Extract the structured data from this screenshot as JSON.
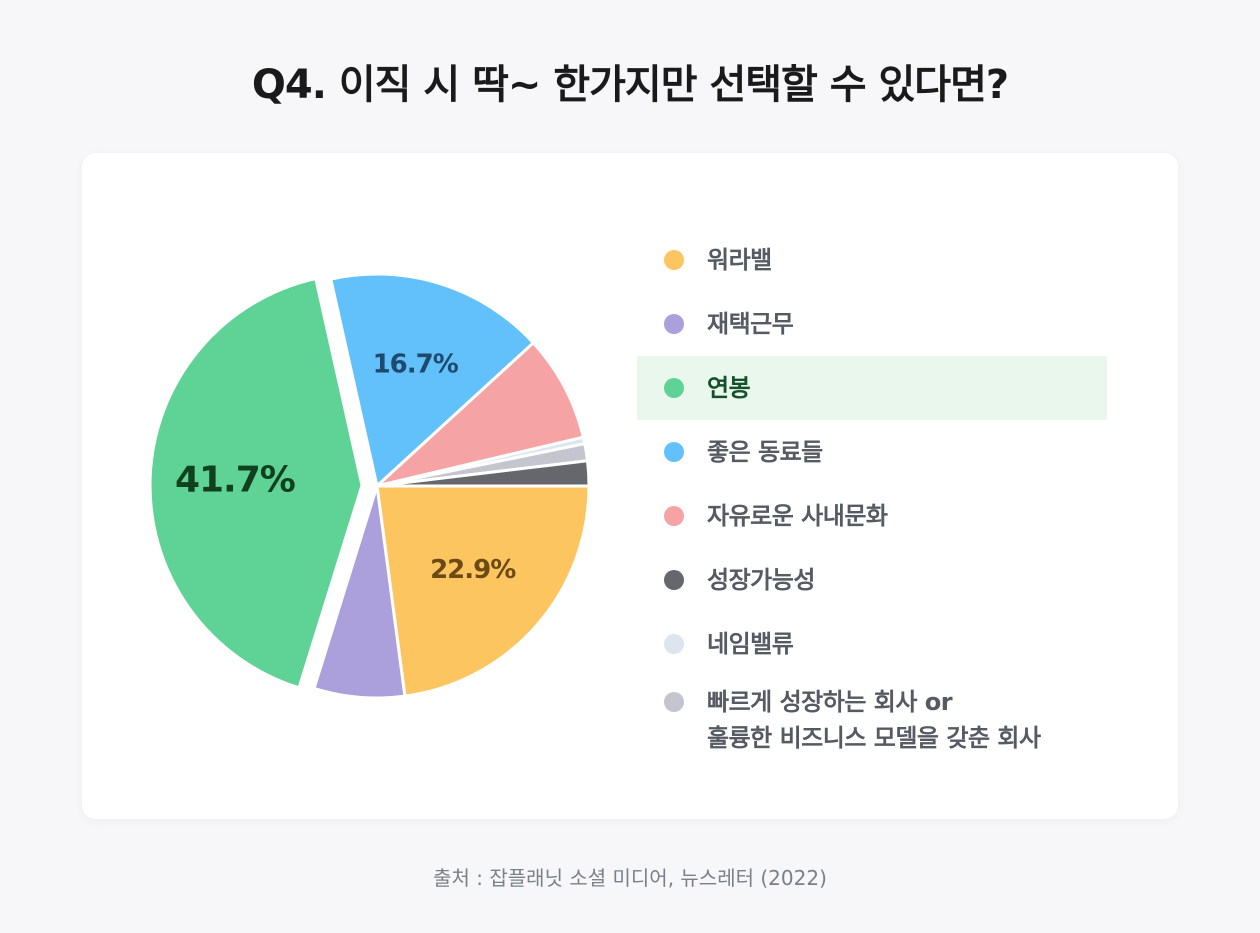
{
  "title": "Q4. 이직 시 딱~ 한가지만 선택할 수 있다면?",
  "source": "출처 : 잡플래닛 소셜 미디어, 뉴스레터 (2022)",
  "chart_data": {
    "type": "pie",
    "title": "Q4. 이직 시 딱~ 한가지만 선택할 수 있다면?",
    "highlighted": "연봉",
    "slices": [
      {
        "label": "워라밸",
        "value": 22.9,
        "color": "#fdc560",
        "label_color": "#6b4a16",
        "data_label": "22.9%"
      },
      {
        "label": "재택근무",
        "value": 6.9,
        "color": "#ab9fdc",
        "label_color": "#ffffff",
        "data_label": ""
      },
      {
        "label": "연봉",
        "value": 41.7,
        "color": "#5fd396",
        "label_color": "#11401f",
        "data_label": "41.7%",
        "exploded": true
      },
      {
        "label": "좋은 동료들",
        "value": 16.7,
        "color": "#62c0fa",
        "label_color": "#1e4a6e",
        "data_label": "16.7%"
      },
      {
        "label": "자유로운 사내문화",
        "value": 8.1,
        "color": "#f5a3a5",
        "label_color": "#ffffff",
        "data_label": ""
      },
      {
        "label": "네임밸류",
        "value": 0.5,
        "color": "#dfe5ee",
        "label_color": "#ffffff",
        "data_label": ""
      },
      {
        "label": "빠르게 성장하는 회사 or 훌륭한 비즈니스 모델을 갖춘 회사",
        "value": 1.3,
        "color": "#c4c5ce",
        "label_color": "#ffffff",
        "data_label": ""
      },
      {
        "label": "성장가능성",
        "value": 1.9,
        "color": "#65676d",
        "label_color": "#ffffff",
        "data_label": ""
      }
    ]
  },
  "legend": [
    {
      "label": "워라밸",
      "color": "#fdc560"
    },
    {
      "label": "재택근무",
      "color": "#ab9fdc"
    },
    {
      "label": "연봉",
      "color": "#5fd396",
      "highlight": true
    },
    {
      "label": "좋은 동료들",
      "color": "#62c0fa"
    },
    {
      "label": "자유로운 사내문화",
      "color": "#f5a3a5"
    },
    {
      "label": "성장가능성",
      "color": "#65676d"
    },
    {
      "label": "네임밸류",
      "color": "#dfe5ee"
    },
    {
      "label_line1": "빠르게 성장하는 회사 or",
      "label_line2": "훌륭한 비즈니스 모델을 갖춘 회사",
      "color": "#c4c5ce"
    }
  ]
}
